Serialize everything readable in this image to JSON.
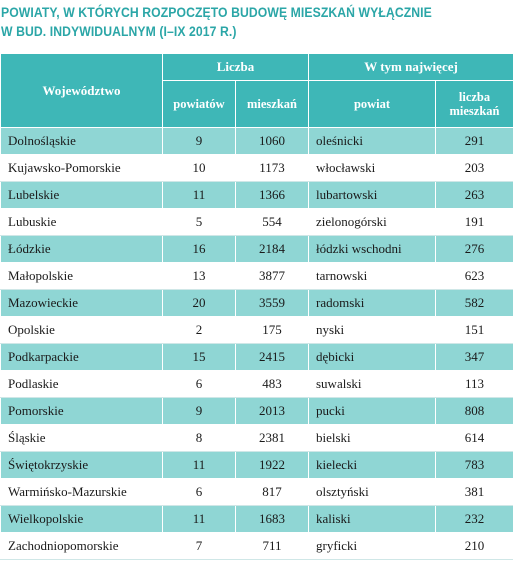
{
  "title_lines": [
    "POWIATY, W KTÓRYCH ROZPOCZĘTO BUDOWĘ MIESZKAŃ WYŁĄCZNIE",
    "W BUD. INDYWIDUALNYM (I–IX 2017 R.)"
  ],
  "headers": {
    "wojewodztwo": "Województwo",
    "liczba": "Liczba",
    "w_tym": "W tym najwięcej",
    "powiatow": "powiatów",
    "mieszkan": "mieszkań",
    "powiat": "powiat",
    "liczba_mieszkan_1": "liczba",
    "liczba_mieszkan_2": "mieszkań"
  },
  "rows": [
    {
      "woj": "Dolnośląskie",
      "powiatow": "9",
      "mieszkan": "1060",
      "powiat": "oleśnicki",
      "liczba": "291"
    },
    {
      "woj": "Kujawsko-Pomorskie",
      "powiatow": "10",
      "mieszkan": "1173",
      "powiat": "włocławski",
      "liczba": "203"
    },
    {
      "woj": "Lubelskie",
      "powiatow": "11",
      "mieszkan": "1366",
      "powiat": "lubartowski",
      "liczba": "263"
    },
    {
      "woj": "Lubuskie",
      "powiatow": "5",
      "mieszkan": "554",
      "powiat": "zielonogórski",
      "liczba": "191"
    },
    {
      "woj": "Łódzkie",
      "powiatow": "16",
      "mieszkan": "2184",
      "powiat": "łódzki wschodni",
      "liczba": "276"
    },
    {
      "woj": "Małopolskie",
      "powiatow": "13",
      "mieszkan": "3877",
      "powiat": "tarnowski",
      "liczba": "623"
    },
    {
      "woj": "Mazowieckie",
      "powiatow": "20",
      "mieszkan": "3559",
      "powiat": "radomski",
      "liczba": "582"
    },
    {
      "woj": "Opolskie",
      "powiatow": "2",
      "mieszkan": "175",
      "powiat": "nyski",
      "liczba": "151"
    },
    {
      "woj": "Podkarpackie",
      "powiatow": "15",
      "mieszkan": "2415",
      "powiat": "dębicki",
      "liczba": "347"
    },
    {
      "woj": "Podlaskie",
      "powiatow": "6",
      "mieszkan": "483",
      "powiat": "suwalski",
      "liczba": "113"
    },
    {
      "woj": "Pomorskie",
      "powiatow": "9",
      "mieszkan": "2013",
      "powiat": "pucki",
      "liczba": "808"
    },
    {
      "woj": "Śląskie",
      "powiatow": "8",
      "mieszkan": "2381",
      "powiat": "bielski",
      "liczba": "614"
    },
    {
      "woj": "Świętokrzyskie",
      "powiatow": "11",
      "mieszkan": "1922",
      "powiat": "kielecki",
      "liczba": "783"
    },
    {
      "woj": "Warmińsko-Mazurskie",
      "powiatow": "6",
      "mieszkan": "817",
      "powiat": "olsztyński",
      "liczba": "381"
    },
    {
      "woj": "Wielkopolskie",
      "powiatow": "11",
      "mieszkan": "1683",
      "powiat": "kaliski",
      "liczba": "232"
    },
    {
      "woj": "Zachodniopomorskie",
      "powiatow": "7",
      "mieszkan": "711",
      "powiat": "gryficki",
      "liczba": "210"
    }
  ],
  "colors": {
    "title": "#2ba6a7",
    "header_bg": "#3eb7b7",
    "row_alt_bg": "#8fd6d4"
  }
}
